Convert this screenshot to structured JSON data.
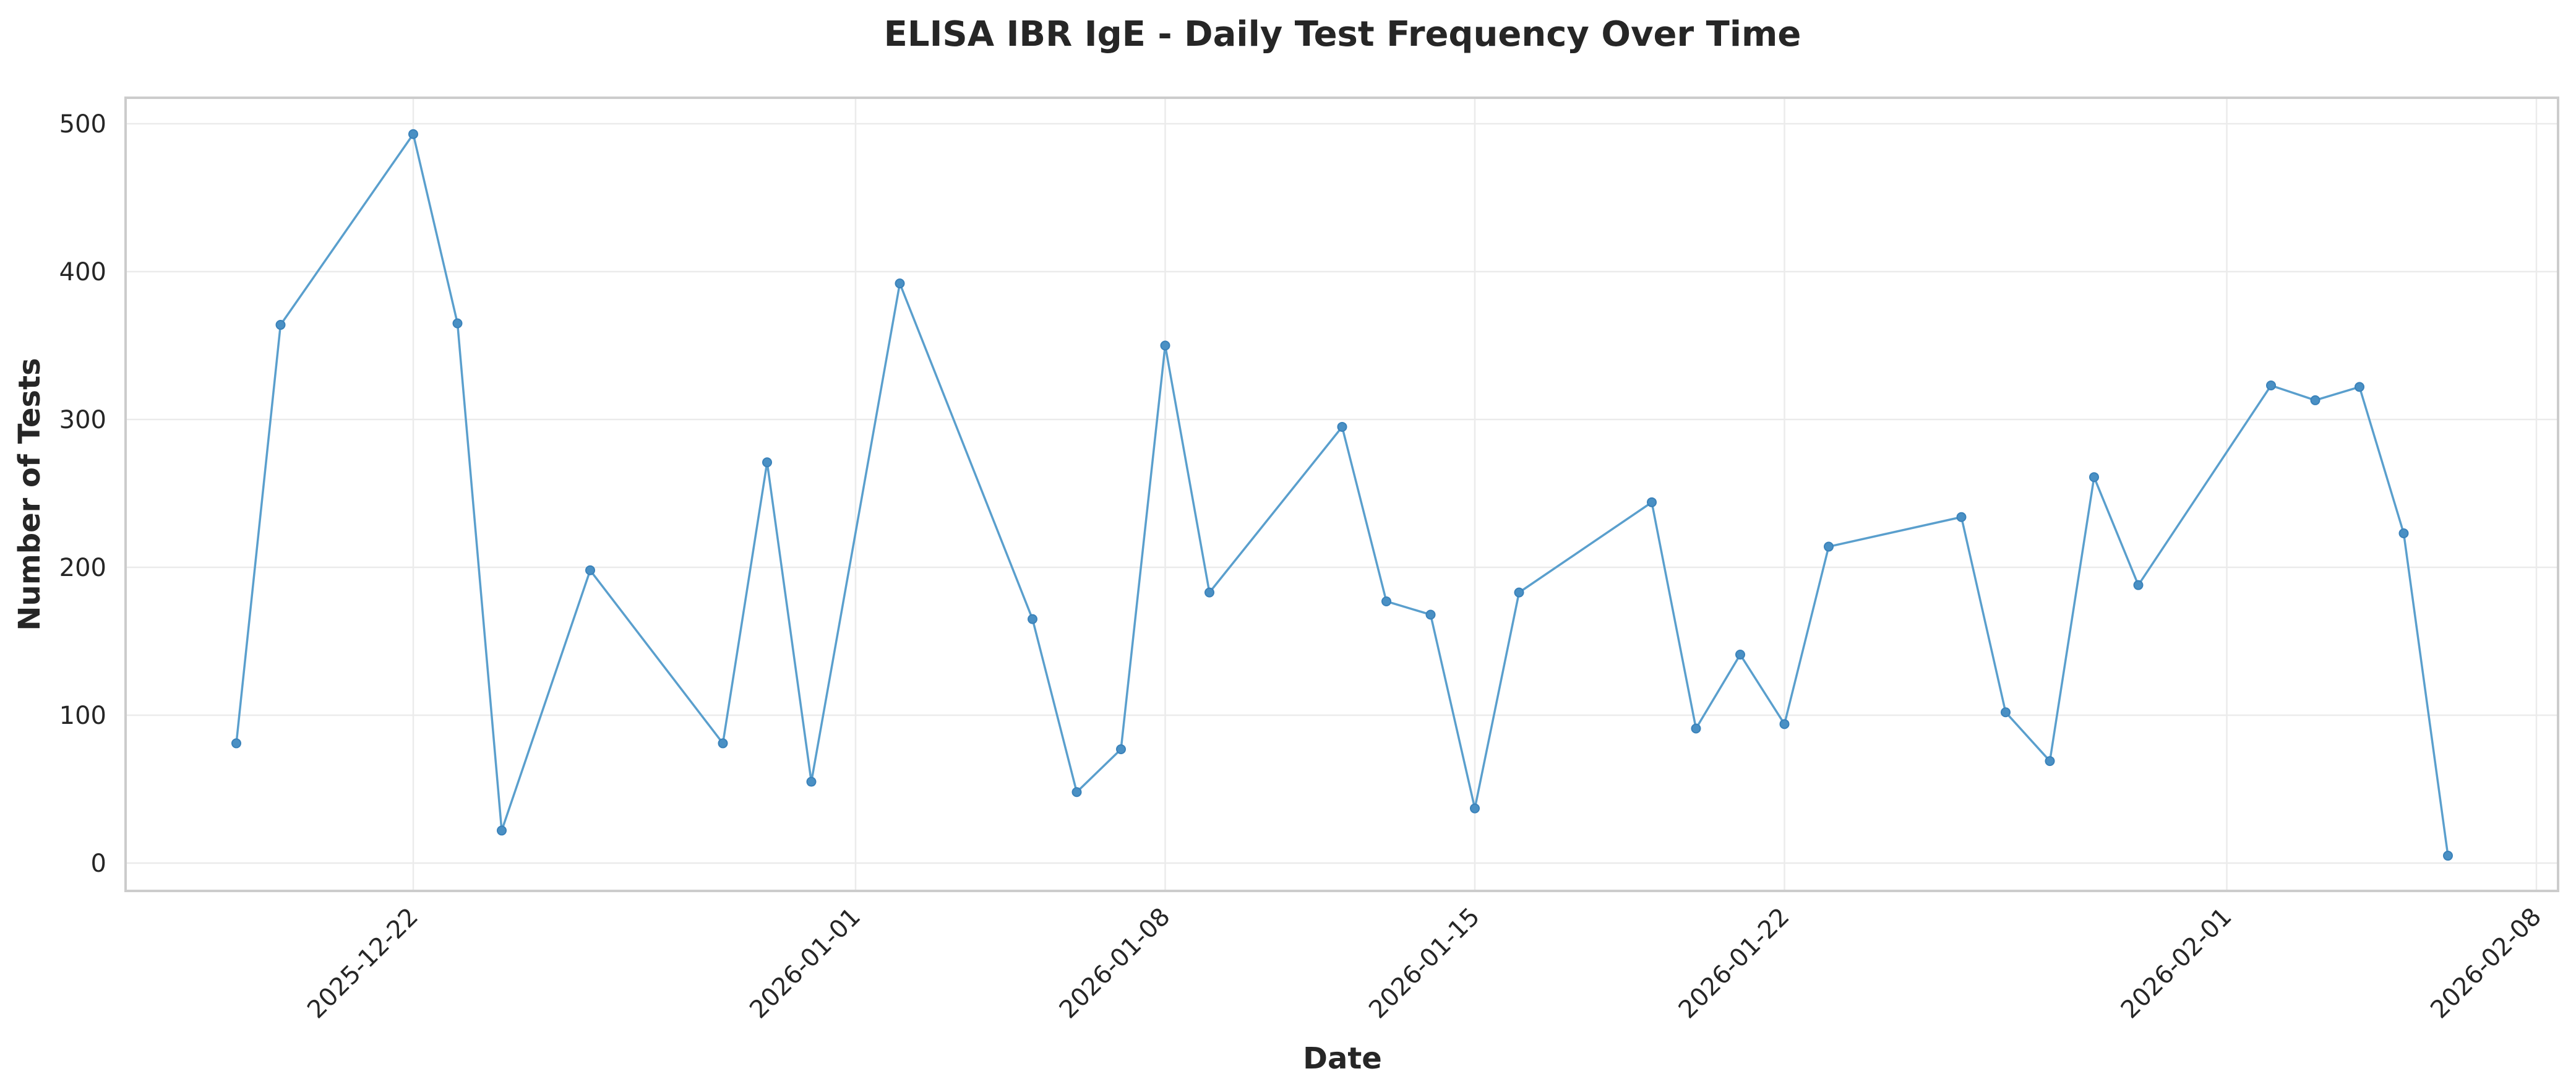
{
  "chart_data": {
    "type": "line",
    "title": "ELISA IBR IgE - Daily Test Frequency Over Time",
    "xlabel": "Date",
    "ylabel": "Number of Tests",
    "ylim": [
      -18,
      518
    ],
    "xlim": [
      "2025-12-15",
      "2026-02-08"
    ],
    "grid": true,
    "legend": null,
    "yticks": [
      0,
      100,
      200,
      300,
      400,
      500
    ],
    "xticks": [
      "2025-12-22",
      "2026-01-01",
      "2026-01-08",
      "2026-01-15",
      "2026-01-22",
      "2026-02-01",
      "2026-02-08"
    ],
    "series": [
      {
        "name": "Number of Tests",
        "color": "#4e95c8",
        "marker": "o",
        "x": [
          "2025-12-18",
          "2025-12-19",
          "2025-12-22",
          "2025-12-23",
          "2025-12-24",
          "2025-12-26",
          "2025-12-29",
          "2025-12-30",
          "2025-12-31",
          "2026-01-02",
          "2026-01-05",
          "2026-01-06",
          "2026-01-07",
          "2026-01-08",
          "2026-01-09",
          "2026-01-12",
          "2026-01-13",
          "2026-01-14",
          "2026-01-15",
          "2026-01-16",
          "2026-01-19",
          "2026-01-20",
          "2026-01-21",
          "2026-01-22",
          "2026-01-23",
          "2026-01-26",
          "2026-01-27",
          "2026-01-28",
          "2026-01-29",
          "2026-01-30",
          "2026-02-02",
          "2026-02-03",
          "2026-02-04",
          "2026-02-05",
          "2026-02-06"
        ],
        "values": [
          81,
          364,
          493,
          365,
          22,
          198,
          81,
          271,
          55,
          392,
          165,
          48,
          77,
          350,
          183,
          295,
          177,
          168,
          37,
          183,
          244,
          91,
          141,
          94,
          214,
          234,
          102,
          69,
          261,
          188,
          323,
          313,
          322,
          223,
          5
        ]
      }
    ]
  },
  "colors": {
    "line": "#5a9fcd",
    "marker_fill": "#4a90c4",
    "marker_edge": "#3a82ba",
    "grid": "#ebebeb",
    "frame": "#cccccc",
    "text": "#262626"
  }
}
